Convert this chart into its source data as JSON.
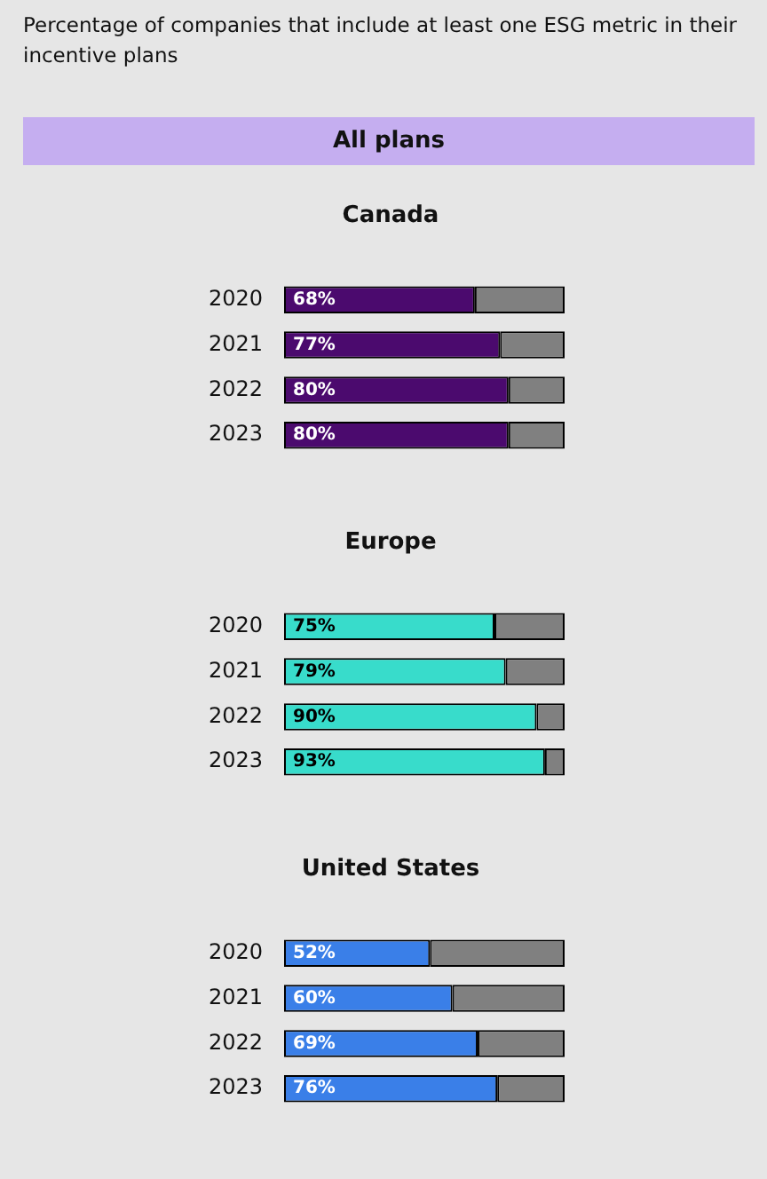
{
  "chart_data": [
    {
      "type": "other",
      "title": "Percentage of companies that include at least one ESG metric in their incentive plans",
      "subtitle": "All plans"
    },
    {
      "type": "bar",
      "title": "Canada",
      "orientation": "horizontal",
      "stacked": true,
      "categories": [
        "2020",
        "2021",
        "2022",
        "2023"
      ],
      "xlim": [
        0,
        100
      ],
      "tick_labels": "y",
      "legend": false,
      "series": [
        {
          "color": "#4b0a6e",
          "values": [
            68,
            77,
            80,
            80
          ],
          "value_labels": [
            "68%",
            "77%",
            "80%",
            "80%"
          ]
        },
        {
          "color": "#808080",
          "values": [
            32,
            23,
            20,
            20
          ]
        }
      ]
    },
    {
      "type": "bar",
      "title": "Europe",
      "orientation": "horizontal",
      "stacked": true,
      "categories": [
        "2020",
        "2021",
        "2022",
        "2023"
      ],
      "xlim": [
        0,
        100
      ],
      "tick_labels": "y",
      "legend": false,
      "series": [
        {
          "color": "#38dccb",
          "values": [
            75,
            79,
            90,
            93
          ],
          "value_labels": [
            "75%",
            "79%",
            "90%",
            "93%"
          ]
        },
        {
          "color": "#808080",
          "values": [
            25,
            21,
            10,
            7
          ]
        }
      ]
    },
    {
      "type": "bar",
      "title": "United States",
      "orientation": "horizontal",
      "stacked": true,
      "categories": [
        "2020",
        "2021",
        "2022",
        "2023"
      ],
      "xlim": [
        0,
        100
      ],
      "tick_labels": "y",
      "legend": false,
      "series": [
        {
          "color": "#3a7fe8",
          "values": [
            52,
            60,
            69,
            76
          ],
          "value_labels": [
            "52%",
            "60%",
            "69%",
            "76%"
          ]
        },
        {
          "color": "#808080",
          "values": [
            48,
            40,
            31,
            24
          ]
        }
      ]
    }
  ]
}
